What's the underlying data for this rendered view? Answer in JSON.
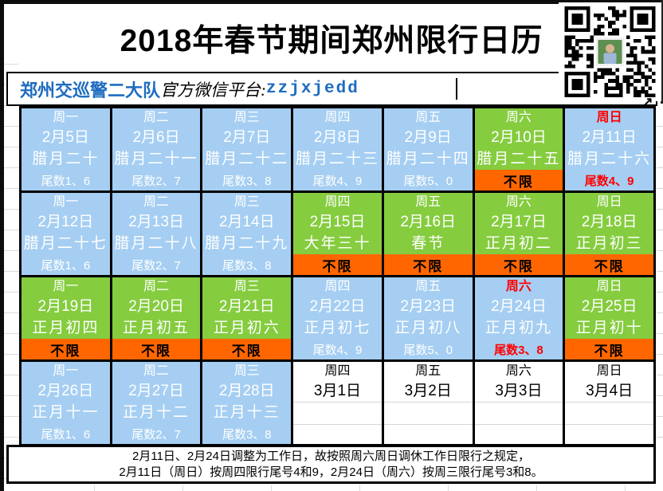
{
  "header": {
    "title": "2018年春节期间郑州限行日历",
    "qr_icon": "qr-code"
  },
  "subtitle": {
    "org": "郑州交巡警二大队",
    "label": "官方微信平台:",
    "wechat_id": "zzjxjedd"
  },
  "calendar": {
    "weeks": [
      [
        {
          "weekday": "周一",
          "date": "2月5日",
          "lunar": "腊月二十",
          "restriction": "尾数1、6",
          "type": "restricted"
        },
        {
          "weekday": "周二",
          "date": "2月6日",
          "lunar": "腊月二十一",
          "restriction": "尾数2、7",
          "type": "restricted"
        },
        {
          "weekday": "周三",
          "date": "2月7日",
          "lunar": "腊月二十二",
          "restriction": "尾数3、8",
          "type": "restricted"
        },
        {
          "weekday": "周四",
          "date": "2月8日",
          "lunar": "腊月二十三",
          "restriction": "尾数4、9",
          "type": "restricted"
        },
        {
          "weekday": "周五",
          "date": "2月9日",
          "lunar": "腊月二十四",
          "restriction": "尾数5、0",
          "type": "restricted"
        },
        {
          "weekday": "周六",
          "date": "2月10日",
          "lunar": "腊月二十五",
          "restriction": "不限",
          "type": "holiday"
        },
        {
          "weekday": "周日",
          "date": "2月11日",
          "lunar": "腊月二十六",
          "restriction": "尾数4、9",
          "type": "restricted",
          "weekday_red": true,
          "restriction_red": true
        }
      ],
      [
        {
          "weekday": "周一",
          "date": "2月12日",
          "lunar": "腊月二十七",
          "restriction": "尾数1、6",
          "type": "restricted"
        },
        {
          "weekday": "周二",
          "date": "2月13日",
          "lunar": "腊月二十八",
          "restriction": "尾数2、7",
          "type": "restricted"
        },
        {
          "weekday": "周三",
          "date": "2月14日",
          "lunar": "腊月二十九",
          "restriction": "尾数3、8",
          "type": "restricted"
        },
        {
          "weekday": "周四",
          "date": "2月15日",
          "lunar": "大年三十",
          "restriction": "不限",
          "type": "holiday"
        },
        {
          "weekday": "周五",
          "date": "2月16日",
          "lunar": "春节",
          "restriction": "不限",
          "type": "holiday"
        },
        {
          "weekday": "周六",
          "date": "2月17日",
          "lunar": "正月初二",
          "restriction": "不限",
          "type": "holiday"
        },
        {
          "weekday": "周日",
          "date": "2月18日",
          "lunar": "正月初三",
          "restriction": "不限",
          "type": "holiday"
        }
      ],
      [
        {
          "weekday": "周一",
          "date": "2月19日",
          "lunar": "正月初四",
          "restriction": "不限",
          "type": "holiday"
        },
        {
          "weekday": "周二",
          "date": "2月20日",
          "lunar": "正月初五",
          "restriction": "不限",
          "type": "holiday"
        },
        {
          "weekday": "周三",
          "date": "2月21日",
          "lunar": "正月初六",
          "restriction": "不限",
          "type": "holiday"
        },
        {
          "weekday": "周四",
          "date": "2月22日",
          "lunar": "正月初七",
          "restriction": "尾数4、9",
          "type": "restricted"
        },
        {
          "weekday": "周五",
          "date": "2月23日",
          "lunar": "正月初八",
          "restriction": "尾数5、0",
          "type": "restricted"
        },
        {
          "weekday": "周六",
          "date": "2月24日",
          "lunar": "正月初九",
          "restriction": "尾数3、8",
          "type": "restricted",
          "weekday_red": true,
          "restriction_red": true
        },
        {
          "weekday": "周日",
          "date": "2月25日",
          "lunar": "正月初十",
          "restriction": "不限",
          "type": "holiday"
        }
      ],
      [
        {
          "weekday": "周一",
          "date": "2月26日",
          "lunar": "正月十一",
          "restriction": "尾数1、6",
          "type": "restricted"
        },
        {
          "weekday": "周二",
          "date": "2月27日",
          "lunar": "正月十二",
          "restriction": "尾数2、7",
          "type": "restricted"
        },
        {
          "weekday": "周三",
          "date": "2月28日",
          "lunar": "正月十三",
          "restriction": "尾数3、8",
          "type": "restricted"
        },
        {
          "weekday": "周四",
          "date": "3月1日",
          "lunar": "",
          "restriction": "",
          "type": "plain"
        },
        {
          "weekday": "周五",
          "date": "3月2日",
          "lunar": "",
          "restriction": "",
          "type": "plain"
        },
        {
          "weekday": "周六",
          "date": "3月3日",
          "lunar": "",
          "restriction": "",
          "type": "plain"
        },
        {
          "weekday": "周日",
          "date": "3月4日",
          "lunar": "",
          "restriction": "",
          "type": "plain"
        }
      ]
    ]
  },
  "footer_note": {
    "line1": "2月11日、2月24日调整为工作日，故按照周六周日调休工作日限行之规定，",
    "line2": "2月11日（周日）按周四限行尾号4和9，2月24日（周六）按周三限行尾号3和8。"
  },
  "colors": {
    "restricted_cell_bg": "#A5CEF2",
    "holiday_cell_bg": "#85CC3F",
    "no_restriction_strip_bg": "#FF6600",
    "highlight_red": "#FF0000",
    "wechat_blue": "#1E6CC0"
  }
}
